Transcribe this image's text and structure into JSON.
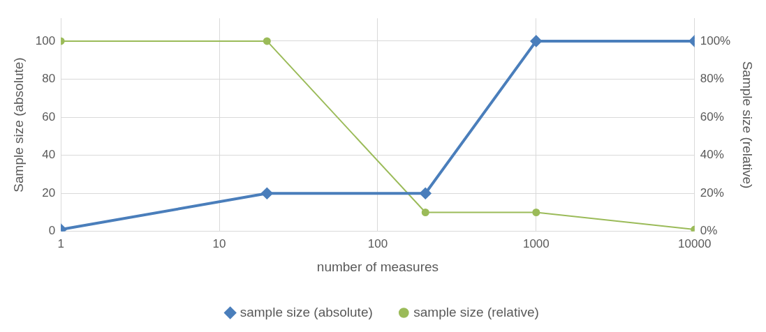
{
  "chart_data": {
    "type": "line",
    "xlabel": "number of measures",
    "ylabel": "Sample size (absolute)",
    "y2label": "Sample size (relative)",
    "log": "x",
    "xlim": [
      1,
      10000
    ],
    "xticks": [
      1,
      10,
      100,
      1000,
      10000
    ],
    "ylim": [
      0,
      112
    ],
    "yticks": [
      0,
      20,
      40,
      60,
      80,
      100
    ],
    "y2lim": [
      0,
      1.12
    ],
    "y2ticks": [
      {
        "value": 0,
        "label": "0%"
      },
      {
        "value": 0.2,
        "label": "20%"
      },
      {
        "value": 0.4,
        "label": "40%"
      },
      {
        "value": 0.6,
        "label": "60%"
      },
      {
        "value": 0.8,
        "label": "80%"
      },
      {
        "value": 1,
        "label": "100%"
      }
    ],
    "grid": true,
    "legend": "bottom",
    "line_style": "solid",
    "series": [
      {
        "name": "sample size (absolute)",
        "color": "#4a7ebb",
        "marker": "diamond",
        "x": [
          1,
          20,
          200,
          1000,
          10000
        ],
        "values": [
          1,
          20,
          20,
          100,
          100
        ]
      },
      {
        "name": "sample size (relative)",
        "color": "#9bbb59",
        "marker": "circle",
        "axis": "y2",
        "x": [
          1,
          20,
          200,
          1000,
          10000
        ],
        "values": [
          1,
          1,
          0.1,
          0.1,
          0.01
        ]
      }
    ]
  }
}
